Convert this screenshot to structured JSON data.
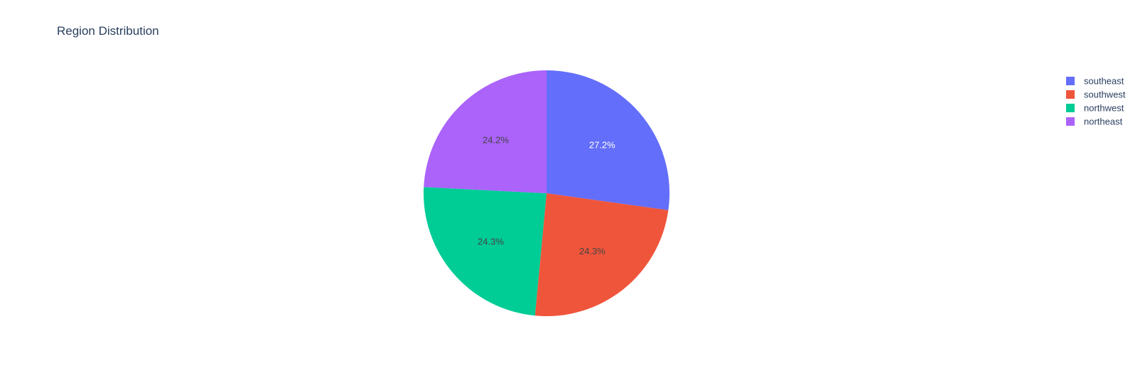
{
  "chart_data": {
    "type": "pie",
    "title": "Region Distribution",
    "categories": [
      "southeast",
      "southwest",
      "northwest",
      "northeast"
    ],
    "values": [
      27.2,
      24.3,
      24.3,
      24.2
    ],
    "labels": [
      "27.2%",
      "24.3%",
      "24.3%",
      "24.2%"
    ],
    "unit": "%",
    "colors": [
      "#636efa",
      "#ef553b",
      "#00cc96",
      "#ab63fa"
    ],
    "label_colors": [
      "#ffffff",
      "#444444",
      "#444444",
      "#444444"
    ],
    "rotation": "clockwise starting at top",
    "legend": {
      "position": "top-right",
      "items": [
        "southeast",
        "southwest",
        "northwest",
        "northeast"
      ]
    }
  }
}
